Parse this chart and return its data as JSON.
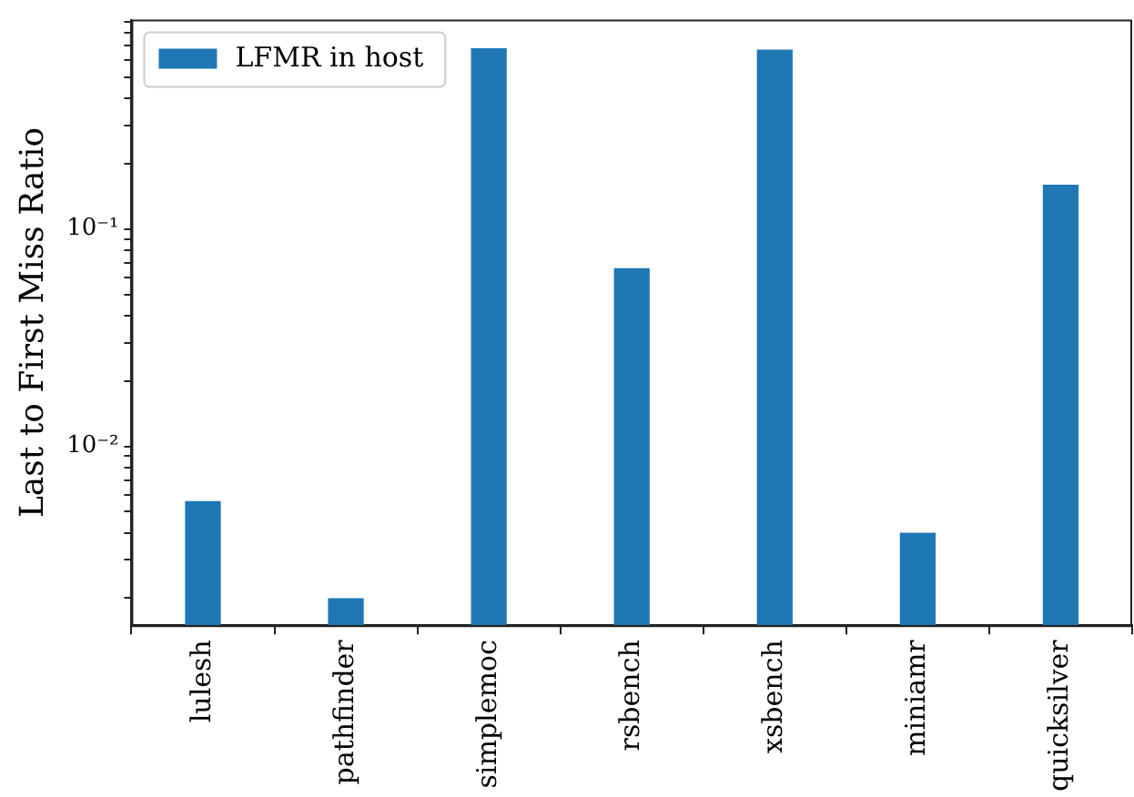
{
  "chart_data": {
    "type": "bar",
    "ylabel": "Last to First Miss Ratio",
    "categories": [
      "lulesh",
      "pathfinder",
      "simplemoc",
      "rsbench",
      "xsbench",
      "miniamr",
      "quicksilver"
    ],
    "series": [
      {
        "name": "LFMR in host",
        "color": "#1f77b4",
        "values": [
          0.0056,
          0.002,
          0.68,
          0.066,
          0.67,
          0.004,
          0.16
        ]
      }
    ],
    "log": "y",
    "ylim": [
      0.0015,
      0.92
    ],
    "yticks": [
      {
        "value": 0.002,
        "label": null
      },
      {
        "value": 0.003,
        "label": null
      },
      {
        "value": 0.004,
        "label": null
      },
      {
        "value": 0.005,
        "label": null
      },
      {
        "value": 0.006,
        "label": null
      },
      {
        "value": 0.007,
        "label": null
      },
      {
        "value": 0.008,
        "label": null
      },
      {
        "value": 0.009,
        "label": null
      },
      {
        "value": 0.01,
        "label": "10⁻²"
      },
      {
        "value": 0.02,
        "label": null
      },
      {
        "value": 0.03,
        "label": null
      },
      {
        "value": 0.04,
        "label": null
      },
      {
        "value": 0.05,
        "label": null
      },
      {
        "value": 0.06,
        "label": null
      },
      {
        "value": 0.07,
        "label": null
      },
      {
        "value": 0.08,
        "label": null
      },
      {
        "value": 0.09,
        "label": null
      },
      {
        "value": 0.1,
        "label": "10⁻¹"
      },
      {
        "value": 0.2,
        "label": null
      },
      {
        "value": 0.3,
        "label": null
      },
      {
        "value": 0.4,
        "label": null
      },
      {
        "value": 0.5,
        "label": null
      },
      {
        "value": 0.6,
        "label": null
      },
      {
        "value": 0.7,
        "label": null
      },
      {
        "value": 0.8,
        "label": null
      },
      {
        "value": 0.9,
        "label": null
      }
    ],
    "grid": false,
    "legend": "top left"
  }
}
